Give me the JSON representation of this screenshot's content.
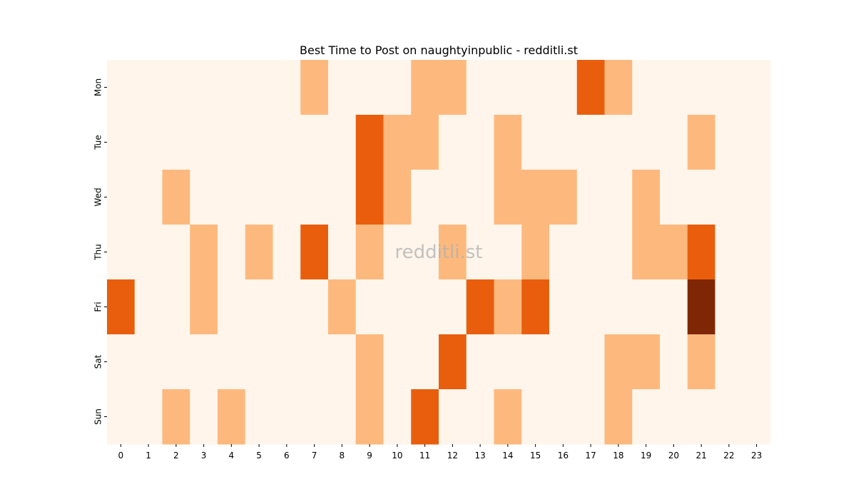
{
  "chart_data": {
    "type": "heatmap",
    "title": "Best Time to Post on naughtyinpublic - redditli.st",
    "watermark": "redditli.st",
    "xlabel": "",
    "ylabel": "",
    "x_categories": [
      "0",
      "1",
      "2",
      "3",
      "4",
      "5",
      "6",
      "7",
      "8",
      "9",
      "10",
      "11",
      "12",
      "13",
      "14",
      "15",
      "16",
      "17",
      "18",
      "19",
      "20",
      "21",
      "22",
      "23"
    ],
    "y_categories": [
      "Mon",
      "Tue",
      "Wed",
      "Thu",
      "Fri",
      "Sat",
      "Sun"
    ],
    "values": [
      [
        0,
        0,
        0,
        0,
        0,
        0,
        0,
        1,
        0,
        0,
        0,
        1,
        1,
        0,
        0,
        0,
        0,
        2,
        1,
        0,
        0,
        0,
        0,
        0
      ],
      [
        0,
        0,
        0,
        0,
        0,
        0,
        0,
        0,
        0,
        2,
        1,
        1,
        0,
        0,
        1,
        0,
        0,
        0,
        0,
        0,
        0,
        1,
        0,
        0
      ],
      [
        0,
        0,
        1,
        0,
        0,
        0,
        0,
        0,
        0,
        2,
        1,
        0,
        0,
        0,
        1,
        1,
        1,
        0,
        0,
        1,
        0,
        0,
        0,
        0
      ],
      [
        0,
        0,
        0,
        1,
        0,
        1,
        0,
        2,
        0,
        1,
        0,
        0,
        1,
        0,
        0,
        1,
        0,
        0,
        0,
        1,
        1,
        2,
        0,
        0
      ],
      [
        2,
        0,
        0,
        1,
        0,
        0,
        0,
        0,
        1,
        0,
        0,
        0,
        0,
        2,
        1,
        2,
        0,
        0,
        0,
        0,
        0,
        3,
        0,
        0
      ],
      [
        0,
        0,
        0,
        0,
        0,
        0,
        0,
        0,
        0,
        1,
        0,
        0,
        2,
        0,
        0,
        0,
        0,
        0,
        1,
        1,
        0,
        1,
        0,
        0
      ],
      [
        0,
        0,
        1,
        0,
        1,
        0,
        0,
        0,
        0,
        1,
        0,
        2,
        0,
        0,
        1,
        0,
        0,
        0,
        1,
        0,
        0,
        0,
        0,
        0
      ]
    ],
    "colorscale": [
      "#fff5eb",
      "#fdb97d",
      "#e95e0d",
      "#7f2704"
    ],
    "grid": false,
    "legend": "none"
  }
}
